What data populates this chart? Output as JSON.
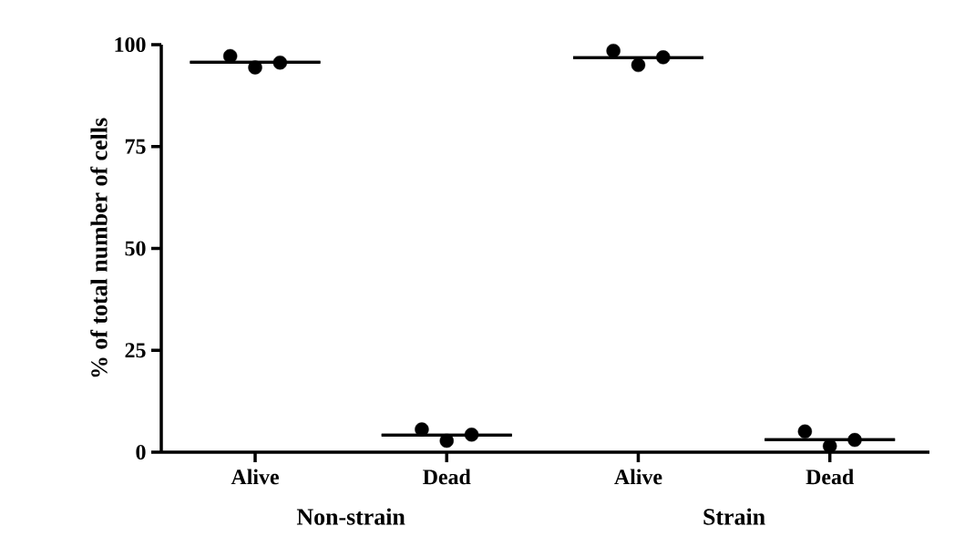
{
  "chart_data": {
    "type": "scatter",
    "ylabel": "% of total number of cells",
    "categories": [
      "Alive",
      "Dead",
      "Alive",
      "Dead"
    ],
    "ylim": [
      0,
      100
    ],
    "yticks": [
      0,
      25,
      50,
      75,
      100
    ],
    "grid": false,
    "marker": "circle",
    "annotations": [
      "Non-strain",
      "Strain"
    ],
    "series": [
      {
        "color": "#000000",
        "values": [
          97.2,
          5.6,
          98.5,
          5.1
        ]
      },
      {
        "color": "#000000",
        "values": [
          94.4,
          2.8,
          95.0,
          1.5
        ]
      },
      {
        "color": "#000000",
        "values": [
          95.6,
          4.3,
          96.9,
          3.0
        ]
      },
      {
        "type": "box",
        "color": "#000000",
        "boxes": [
          {
            "low": 95.7,
            "q1": 95.7,
            "median": 95.7,
            "q3": 95.7,
            "high": 95.7
          },
          {
            "low": 4.2,
            "q1": 4.2,
            "median": 4.2,
            "q3": 4.2,
            "high": 4.2
          },
          {
            "low": 96.8,
            "q1": 96.8,
            "median": 96.8,
            "q3": 96.8,
            "high": 96.8
          },
          {
            "low": 3.1,
            "q1": 3.1,
            "median": 3.1,
            "q3": 3.1,
            "high": 3.1
          }
        ]
      }
    ]
  }
}
